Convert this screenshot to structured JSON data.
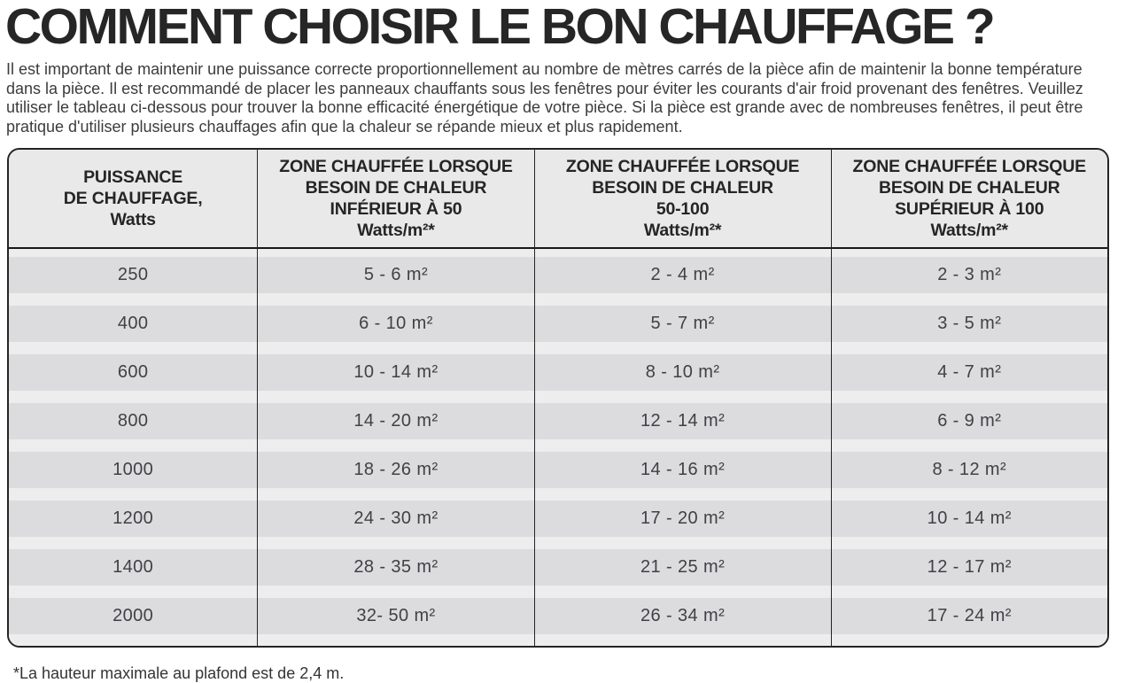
{
  "title": "COMMENT CHOISIR LE BON CHAUFFAGE ?",
  "intro": "Il est important de maintenir une puissance correcte proportionnellement au nombre de mètres carrés de la pièce afin de maintenir la bonne température dans la pièce. Il est recommandé de placer les panneaux chauffants sous les fenêtres pour éviter les courants d'air froid provenant des fenêtres. Veuillez utiliser le tableau ci-dessous pour trouver la bonne efficacité énergétique de votre pièce. Si la pièce est grande avec de nombreuses fenêtres, il peut être pratique d'utiliser plusieurs chauffages afin que la chaleur se répande mieux et plus rapidement.",
  "table": {
    "headers": [
      {
        "lines": [
          "PUISSANCE",
          "DE CHAUFFAGE,",
          "Watts"
        ]
      },
      {
        "lines": [
          "ZONE CHAUFFÉE LORSQUE",
          "BESOIN DE CHALEUR",
          "INFÉRIEUR À 50",
          "Watts/m²*"
        ]
      },
      {
        "lines": [
          "ZONE CHAUFFÉE LORSQUE",
          "BESOIN DE CHALEUR",
          "50-100",
          "Watts/m²*"
        ]
      },
      {
        "lines": [
          "ZONE CHAUFFÉE LORSQUE",
          "BESOIN DE CHALEUR",
          "SUPÉRIEUR À 100",
          "Watts/m²*"
        ]
      }
    ],
    "rows": [
      {
        "cells": [
          "250",
          "5 - 6 m²",
          "2 - 4 m²",
          "2 - 3 m²"
        ]
      },
      {
        "cells": [
          "400",
          "6 - 10 m²",
          "5 - 7 m²",
          "3 - 5 m²"
        ]
      },
      {
        "cells": [
          "600",
          "10 - 14 m²",
          "8 - 10 m²",
          "4 - 7 m²"
        ]
      },
      {
        "cells": [
          "800",
          "14 - 20 m²",
          "12 - 14 m²",
          "6 - 9 m²"
        ]
      },
      {
        "cells": [
          "1000",
          "18 - 26 m²",
          "14 - 16 m²",
          "8 - 12 m²"
        ]
      },
      {
        "cells": [
          "1200",
          "24 - 30 m²",
          "17 - 20 m²",
          "10 - 14 m²"
        ]
      },
      {
        "cells": [
          "1400",
          "28 - 35 m²",
          "21 - 25 m²",
          "12 - 17 m²"
        ]
      },
      {
        "cells": [
          "2000",
          "32- 50 m²",
          "26 - 34 m²",
          "17 - 24 m²"
        ]
      }
    ]
  },
  "footnote": "*La hauteur maximale au plafond est de 2,4 m.",
  "colors": {
    "header_bg": "#e9e9ea",
    "row_band_bg": "#dcdcde",
    "row_gap_bg": "#ededee",
    "border": "#242424",
    "title_text": "#262626",
    "body_text": "#3c3c3c"
  }
}
